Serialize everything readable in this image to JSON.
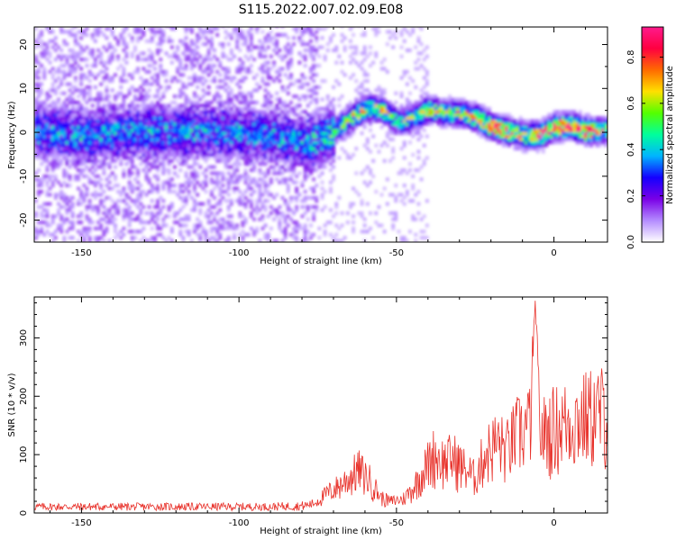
{
  "title": "S115.2022.007.02.09.E08",
  "colors": {
    "snr_line": "#e8312a",
    "colormap": [
      "#ffffff",
      "#b48cff",
      "#7a00e6",
      "#1400ff",
      "#00b4ff",
      "#00ff9c",
      "#54ff00",
      "#ffe000",
      "#ff6a00",
      "#ff0040",
      "#ff1a8c"
    ]
  },
  "chart_data": [
    {
      "type": "heatmap",
      "xlabel": "Height of straight line (km)",
      "ylabel": "Frequency (Hz)",
      "xlim": [
        -165,
        17
      ],
      "ylim": [
        -25,
        24
      ],
      "xticks": [
        -150,
        -100,
        -50,
        0
      ],
      "yticks": [
        -20,
        -10,
        0,
        10,
        20
      ],
      "colorbar": {
        "label": "Normalized spectral amplitude",
        "range": [
          0,
          0.93
        ],
        "ticks": [
          0.0,
          0.2,
          0.4,
          0.6,
          0.8
        ]
      },
      "ridge_center_hz": {
        "x": [
          -165,
          -150,
          -130,
          -110,
          -90,
          -80,
          -75,
          -70,
          -65,
          -60,
          -55,
          -50,
          -45,
          -40,
          -35,
          -30,
          -25,
          -20,
          -15,
          -10,
          -5,
          0,
          5,
          10,
          15
        ],
        "y": [
          0,
          -1,
          0,
          0,
          -1,
          -3,
          -2,
          0,
          3,
          5,
          5,
          2,
          3,
          5,
          4,
          4,
          3,
          1,
          0,
          -1,
          -1,
          1,
          1,
          0,
          0
        ]
      },
      "ridge_peak_amplitude": {
        "x": [
          -165,
          -100,
          -80,
          -72,
          -65,
          -60,
          -55,
          -50,
          -45,
          -40,
          -35,
          -30,
          -25,
          -20,
          -15,
          -10,
          -5,
          0,
          5,
          10,
          15
        ],
        "y": [
          0.3,
          0.3,
          0.28,
          0.45,
          0.55,
          0.6,
          0.58,
          0.4,
          0.55,
          0.62,
          0.55,
          0.65,
          0.75,
          0.85,
          0.8,
          0.7,
          0.85,
          0.75,
          0.9,
          0.93,
          0.6
        ]
      }
    },
    {
      "type": "line",
      "xlabel": "Height of straight line (km)",
      "ylabel": "SNR (10 * v/v)",
      "xlim": [
        -165,
        17
      ],
      "ylim": [
        0,
        370
      ],
      "xticks": [
        -150,
        -100,
        -50,
        0
      ],
      "yticks": [
        0,
        100,
        200,
        300
      ],
      "series": [
        {
          "values_description_free": true,
          "envelope": {
            "x": [
              -165,
              -120,
              -90,
              -80,
              -76,
              -72,
              -68,
              -65,
              -62,
              -58,
              -55,
              -52,
              -48,
              -45,
              -42,
              -38,
              -35,
              -32,
              -28,
              -25,
              -22,
              -18,
              -15,
              -12,
              -8,
              -6,
              -4,
              0,
              4,
              8,
              12,
              17
            ],
            "y": [
              15,
              15,
              15,
              18,
              25,
              50,
              70,
              90,
              110,
              80,
              40,
              30,
              35,
              60,
              100,
              150,
              130,
              140,
              110,
              90,
              150,
              180,
              160,
              200,
              220,
              370,
              200,
              220,
              230,
              240,
              250,
              260
            ]
          }
        }
      ]
    }
  ]
}
